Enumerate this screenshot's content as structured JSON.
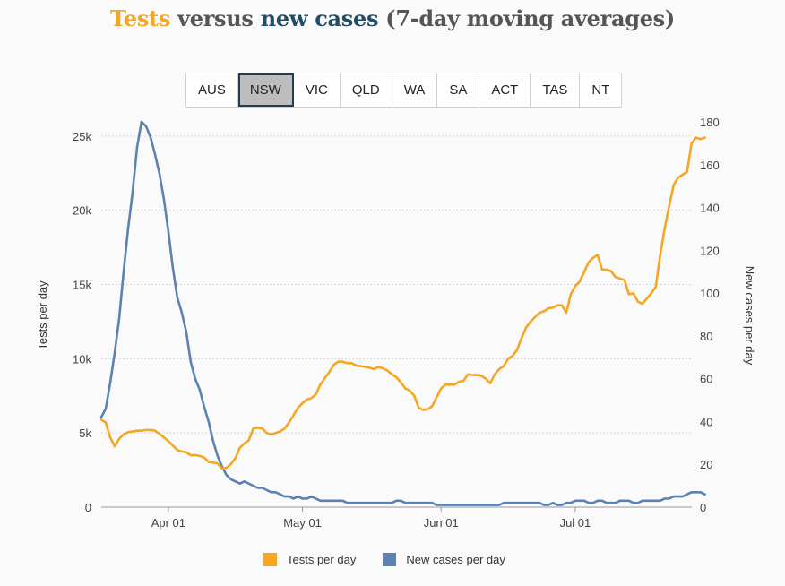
{
  "title": {
    "part1": "Tests",
    "part2": " versus ",
    "part3": "new cases",
    "part4": " (7-day moving averages)"
  },
  "tabs": [
    "AUS",
    "NSW",
    "VIC",
    "QLD",
    "WA",
    "SA",
    "ACT",
    "TAS",
    "NT"
  ],
  "active_tab": "NSW",
  "colors": {
    "tests": "#f5a623",
    "cases": "#5b82b0",
    "title_cases": "#1f4e6a"
  },
  "legend": [
    {
      "label": "Tests per day"
    },
    {
      "label": "New cases per day"
    }
  ],
  "chart_data": {
    "type": "line",
    "title": "Tests versus new cases (7-day moving averages)",
    "x_start": "2020-03-17",
    "x_ticks": [
      "Apr 01",
      "May 01",
      "Jun 01",
      "Jul 01"
    ],
    "y_left": {
      "label": "Tests per day",
      "ticks": [
        "0",
        "5k",
        "10k",
        "15k",
        "20k",
        "25k"
      ],
      "range": [
        0,
        25900
      ]
    },
    "y_right": {
      "label": "New cases per day",
      "ticks": [
        "0",
        "20",
        "40",
        "60",
        "80",
        "100",
        "120",
        "140",
        "160",
        "180"
      ],
      "range": [
        0,
        180
      ]
    },
    "grid": true,
    "legend_position": "bottom",
    "series": [
      {
        "name": "Tests per day",
        "axis": "left",
        "values": [
          5900,
          5700,
          4700,
          4100,
          4600,
          4900,
          5050,
          5100,
          5150,
          5150,
          5200,
          5200,
          5150,
          4950,
          4700,
          4450,
          4150,
          3850,
          3750,
          3700,
          3500,
          3500,
          3450,
          3350,
          3050,
          3000,
          2950,
          2600,
          2650,
          2900,
          3300,
          4000,
          4300,
          4500,
          5300,
          5350,
          5300,
          5000,
          4900,
          5000,
          5100,
          5300,
          5700,
          6200,
          6700,
          7000,
          7250,
          7350,
          7600,
          8250,
          8700,
          9100,
          9600,
          9800,
          9800,
          9700,
          9700,
          9550,
          9500,
          9450,
          9400,
          9300,
          9450,
          9350,
          9200,
          8950,
          8750,
          8400,
          8000,
          7850,
          7500,
          6700,
          6550,
          6600,
          6800,
          7400,
          8000,
          8250,
          8250,
          8250,
          8450,
          8500,
          8950,
          8900,
          8900,
          8850,
          8650,
          8350,
          8950,
          9300,
          9500,
          10000,
          10200,
          10600,
          11400,
          12100,
          12500,
          12800,
          13100,
          13200,
          13400,
          13450,
          13600,
          13600,
          13100,
          14350,
          14900,
          15200,
          15850,
          16500,
          16800,
          17000,
          16000,
          16000,
          15900,
          15500,
          15400,
          15300,
          14350,
          14400,
          13850,
          13700,
          14050,
          14400,
          14850,
          17000,
          18800,
          20300,
          21700,
          22200,
          22400,
          22600,
          24500,
          24900,
          24800,
          24900
        ]
      },
      {
        "name": "New cases per day",
        "axis": "right",
        "values": [
          42,
          46,
          58,
          72,
          88,
          110,
          130,
          147,
          168,
          180,
          178,
          173,
          165,
          156,
          144,
          129,
          112,
          98,
          91,
          82,
          68,
          60,
          55,
          47,
          40,
          31,
          24,
          19,
          15,
          13,
          12,
          11,
          12,
          11,
          10,
          9,
          9,
          8,
          7,
          7,
          6,
          5,
          5,
          4,
          5,
          4,
          4,
          5,
          4,
          3,
          3,
          3,
          3,
          3,
          3,
          2,
          2,
          2,
          2,
          2,
          2,
          2,
          2,
          2,
          2,
          2,
          3,
          3,
          2,
          2,
          2,
          2,
          2,
          2,
          2,
          1,
          1,
          1,
          1,
          1,
          1,
          1,
          1,
          1,
          1,
          1,
          1,
          1,
          1,
          1,
          2,
          2,
          2,
          2,
          2,
          2,
          2,
          2,
          2,
          1,
          1,
          2,
          1,
          1,
          2,
          2,
          3,
          3,
          3,
          2,
          2,
          3,
          3,
          2,
          2,
          2,
          3,
          3,
          3,
          2,
          2,
          3,
          3,
          3,
          3,
          3,
          4,
          4,
          5,
          5,
          5,
          6,
          7,
          7,
          7,
          6
        ]
      }
    ]
  }
}
